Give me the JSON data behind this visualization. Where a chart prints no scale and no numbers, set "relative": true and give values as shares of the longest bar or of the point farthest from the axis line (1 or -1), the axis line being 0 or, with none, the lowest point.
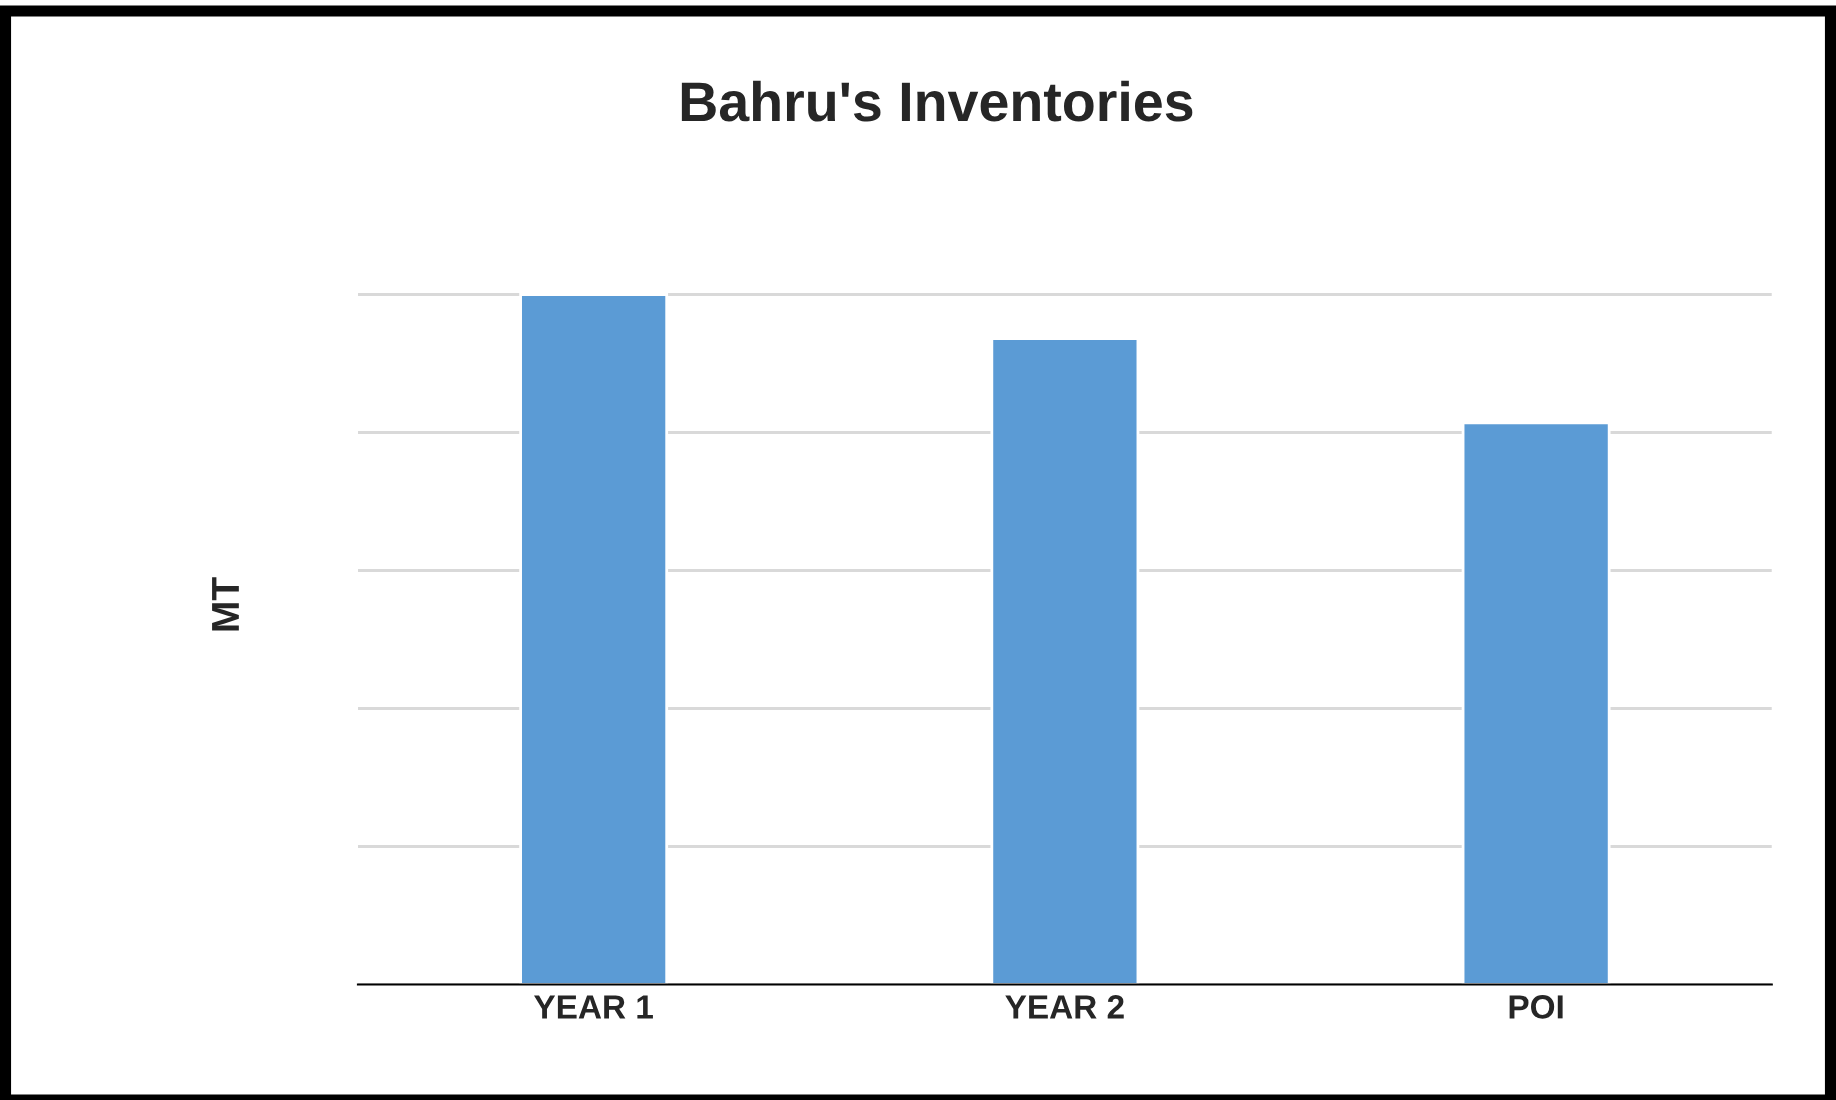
{
  "chart_data": {
    "type": "bar",
    "title": "Bahru's Inventories",
    "ylabel": "MT",
    "categories": [
      "YEAR 1",
      "YEAR 2",
      "POI"
    ],
    "values": [
      1,
      0.936,
      0.814
    ],
    "color": "#5b9bd5",
    "relative": true,
    "grid": "y"
  }
}
